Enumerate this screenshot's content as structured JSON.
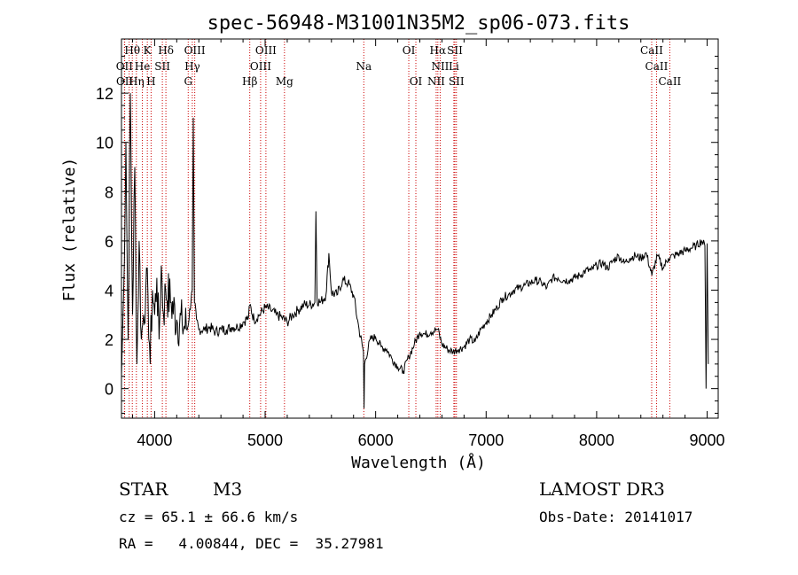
{
  "chart_data": {
    "type": "line",
    "title": "spec-56948-M31001N35M2_sp06-073.fits",
    "xlabel": "Wavelength (Å)",
    "ylabel": "Flux (relative)",
    "xlim": [
      3700,
      9100
    ],
    "ylim": [
      -1.2,
      14.2
    ],
    "xticks": [
      4000,
      5000,
      6000,
      7000,
      8000,
      9000
    ],
    "yticks": [
      0,
      2,
      4,
      6,
      8,
      10,
      12
    ],
    "grid": false,
    "series": [
      {
        "name": "spectrum",
        "x": [
          3700,
          3720,
          3740,
          3760,
          3780,
          3800,
          3820,
          3840,
          3860,
          3880,
          3900,
          3920,
          3940,
          3960,
          3980,
          4000,
          4020,
          4040,
          4060,
          4080,
          4100,
          4150,
          4200,
          4250,
          4300,
          4340,
          4350,
          4360,
          4380,
          4400,
          4450,
          4500,
          4550,
          4600,
          4650,
          4700,
          4750,
          4800,
          4850,
          4861,
          4900,
          4950,
          5000,
          5050,
          5100,
          5150,
          5200,
          5250,
          5300,
          5350,
          5400,
          5450,
          5460,
          5470,
          5500,
          5550,
          5577,
          5600,
          5650,
          5700,
          5750,
          5800,
          5850,
          5890,
          5895,
          5900,
          5950,
          6000,
          6050,
          6100,
          6150,
          6200,
          6250,
          6300,
          6350,
          6400,
          6450,
          6500,
          6550,
          6563,
          6600,
          6650,
          6700,
          6750,
          6800,
          6850,
          6900,
          6950,
          7000,
          7050,
          7100,
          7150,
          7200,
          7250,
          7300,
          7350,
          7400,
          7450,
          7500,
          7550,
          7600,
          7650,
          7700,
          7750,
          7800,
          7850,
          7900,
          7950,
          8000,
          8050,
          8100,
          8150,
          8200,
          8250,
          8300,
          8350,
          8400,
          8450,
          8500,
          8550,
          8600,
          8650,
          8700,
          8750,
          8800,
          8850,
          8900,
          8950,
          8980,
          8990,
          9000,
          9010
        ],
        "y": [
          0.5,
          4,
          10,
          2,
          12,
          3,
          9,
          1,
          6,
          2,
          3,
          4,
          3.8,
          1,
          4,
          3,
          4.5,
          2,
          5,
          3,
          4,
          3.5,
          2.8,
          2.6,
          2.5,
          4,
          11,
          3.5,
          2.8,
          2.4,
          2.4,
          2.5,
          2.3,
          2.4,
          2.4,
          2.5,
          2.5,
          2.7,
          2.9,
          3.4,
          2.8,
          3.0,
          3.3,
          3.2,
          3.0,
          2.9,
          2.7,
          3.0,
          3.2,
          3.4,
          3.4,
          3.5,
          7.2,
          3.6,
          3.5,
          3.8,
          5.5,
          3.9,
          3.8,
          4.4,
          4.3,
          3.8,
          2.4,
          1.5,
          -0.8,
          1.0,
          2.0,
          2.1,
          1.7,
          1.6,
          1.2,
          0.9,
          0.7,
          1.3,
          1.8,
          2.3,
          2.2,
          2.3,
          2.4,
          2.4,
          1.8,
          1.6,
          1.5,
          1.6,
          1.7,
          2.0,
          1.9,
          2.4,
          2.7,
          3.0,
          3.3,
          3.7,
          3.8,
          4.0,
          4.1,
          4.2,
          4.3,
          4.4,
          4.3,
          4.1,
          4.5,
          4.5,
          4.4,
          4.4,
          4.5,
          4.6,
          4.8,
          4.8,
          5.0,
          5.1,
          4.9,
          5.2,
          5.4,
          5.1,
          5.3,
          5.4,
          5.3,
          5.5,
          4.6,
          5.4,
          4.9,
          5.3,
          5.4,
          5.5,
          5.6,
          5.7,
          5.8,
          6.0,
          5.8,
          0,
          5.9,
          1.0
        ]
      }
    ],
    "lines_top": [
      {
        "label": "Hθ",
        "x": 3798,
        "row": 0
      },
      {
        "label": "K",
        "x": 3934,
        "row": 0
      },
      {
        "label": "Hδ",
        "x": 4102,
        "row": 0
      },
      {
        "label": "OIII",
        "x": 4363,
        "row": 0
      },
      {
        "label": "OIII",
        "x": 5007,
        "row": 0
      },
      {
        "label": "OI",
        "x": 6300,
        "row": 0
      },
      {
        "label": "Hα",
        "x": 6563,
        "row": 0
      },
      {
        "label": "SII",
        "x": 6717,
        "row": 0
      },
      {
        "label": "CaII",
        "x": 8498,
        "row": 0
      },
      {
        "label": "OII",
        "x": 3727,
        "row": 1
      },
      {
        "label": "He",
        "x": 3889,
        "row": 1
      },
      {
        "label": "SII",
        "x": 4070,
        "row": 1
      },
      {
        "label": "Hγ",
        "x": 4341,
        "row": 1
      },
      {
        "label": "OIII",
        "x": 4959,
        "row": 1
      },
      {
        "label": "Na",
        "x": 5893,
        "row": 1
      },
      {
        "label": "NII",
        "x": 6584,
        "row": 1
      },
      {
        "label": "Li",
        "x": 6708,
        "row": 1
      },
      {
        "label": "CaII",
        "x": 8542,
        "row": 1
      },
      {
        "label": "OII",
        "x": 3729,
        "row": 2
      },
      {
        "label": "Hη",
        "x": 3835,
        "row": 2
      },
      {
        "label": "H",
        "x": 3968,
        "row": 2
      },
      {
        "label": "G",
        "x": 4304,
        "row": 2
      },
      {
        "label": "Hβ",
        "x": 4861,
        "row": 2
      },
      {
        "label": "Mg",
        "x": 5175,
        "row": 2
      },
      {
        "label": "OI",
        "x": 6364,
        "row": 2
      },
      {
        "label": "NII",
        "x": 6548,
        "row": 2
      },
      {
        "label": "SII",
        "x": 6731,
        "row": 2
      },
      {
        "label": "CaII",
        "x": 8662,
        "row": 2
      }
    ],
    "marker_lines_x": [
      3727,
      3729,
      3770,
      3798,
      3835,
      3889,
      3934,
      3968,
      4070,
      4102,
      4304,
      4341,
      4363,
      4861,
      4959,
      5007,
      5175,
      5893,
      6300,
      6364,
      6548,
      6563,
      6584,
      6708,
      6717,
      6731,
      8498,
      8542,
      8662
    ],
    "colors": {
      "spectrum": "#000000",
      "marker": "#cc0000",
      "axes": "#000000"
    }
  },
  "info": {
    "class_label": "STAR",
    "subclass": "M3",
    "survey": "LAMOST DR3",
    "cz": "cz = 65.1 ± 66.6 km/s",
    "obs_date": "Obs-Date: 20141017",
    "coords": "RA =   4.00844, DEC =  35.27981"
  }
}
